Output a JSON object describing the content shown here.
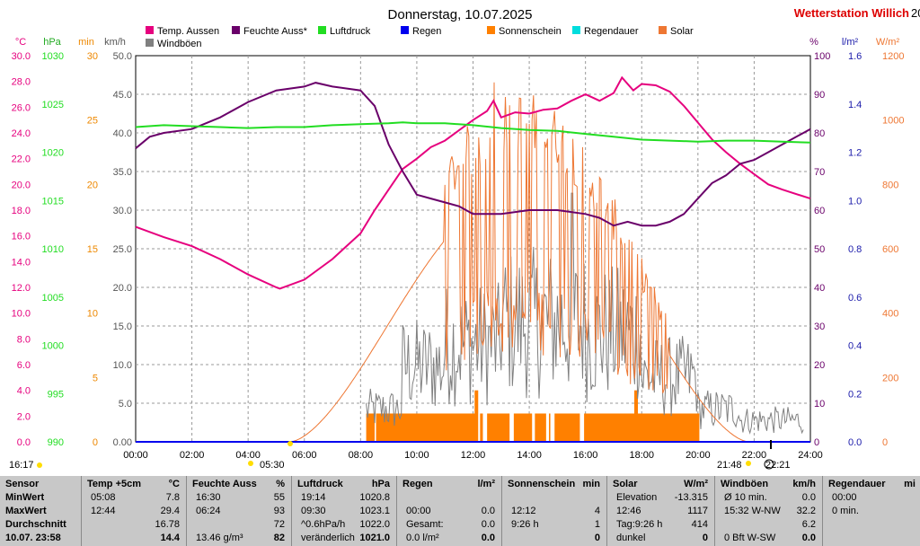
{
  "header": {
    "title": "Donnerstag, 10.07.2025",
    "brand": "Wetterstation Willich",
    "corner": "20"
  },
  "axis_units": {
    "left": [
      "°C",
      "hPa",
      "min",
      "km/h"
    ],
    "right": [
      "%",
      "l/m²",
      "W/m²"
    ]
  },
  "legend": [
    {
      "label": "Temp. Aussen",
      "color": "#e6007e"
    },
    {
      "label": "Feuchte Auss*",
      "color": "#6a006a"
    },
    {
      "label": "Luftdruck",
      "color": "#22dd22"
    },
    {
      "label": "Regen",
      "color": "#0000ee"
    },
    {
      "label": "Sonnenschein",
      "color": "#ff8000"
    },
    {
      "label": "Regendauer",
      "color": "#00dddd"
    },
    {
      "label": "Solar",
      "color": "#ee7733"
    },
    {
      "label": "Windböen",
      "color": "#808080"
    }
  ],
  "markers": {
    "sunrise": "05:30",
    "sunset": "21:48",
    "moon": "22:21",
    "left_time": "16:17"
  },
  "chart_data": {
    "type": "line",
    "title": "Donnerstag, 10.07.2025",
    "x_range": [
      0,
      24
    ],
    "x_ticks": [
      "00:00",
      "02:00",
      "04:00",
      "06:00",
      "08:00",
      "10:00",
      "12:00",
      "14:00",
      "16:00",
      "18:00",
      "20:00",
      "22:00",
      "24:00"
    ],
    "axes": {
      "temp": {
        "unit": "°C",
        "range": [
          0,
          30
        ],
        "ticks": [
          "0.0",
          "2.0",
          "4.0",
          "6.0",
          "8.0",
          "10.0",
          "12.0",
          "14.0",
          "16.0",
          "18.0",
          "20.0",
          "22.0",
          "24.0",
          "26.0",
          "28.0",
          "30.0"
        ],
        "color": "#e6007e"
      },
      "pressure": {
        "unit": "hPa",
        "range": [
          990,
          1030
        ],
        "ticks": [
          "990",
          "995",
          "1000",
          "1005",
          "1010",
          "1015",
          "1020",
          "1025",
          "1030"
        ],
        "color": "#22dd22"
      },
      "minutes": {
        "unit": "min",
        "range": [
          0,
          30
        ],
        "ticks": [
          "0",
          "5",
          "10",
          "15",
          "20",
          "25",
          "30"
        ],
        "color": "#ee8800"
      },
      "wind": {
        "unit": "km/h",
        "range": [
          0,
          50
        ],
        "ticks": [
          "0.00",
          "5.0",
          "10.0",
          "15.0",
          "20.0",
          "25.0",
          "30.0",
          "35.0",
          "40.0",
          "45.0",
          "50.0"
        ],
        "color": "#555555"
      },
      "humidity": {
        "unit": "%",
        "range": [
          0,
          100
        ],
        "ticks": [
          "0",
          "10",
          "20",
          "30",
          "40",
          "50",
          "60",
          "70",
          "80",
          "90",
          "100"
        ],
        "color": "#6a006a"
      },
      "rain": {
        "unit": "l/m²",
        "range": [
          0,
          1.6
        ],
        "ticks": [
          "0.0",
          "0.2",
          "0.4",
          "0.6",
          "0.8",
          "1.0",
          "1.2",
          "1.4",
          "1.6"
        ],
        "color": "#1a1aaa"
      },
      "solar": {
        "unit": "W/m²",
        "range": [
          0,
          1200
        ],
        "ticks": [
          "0",
          "200",
          "400",
          "600",
          "800",
          "1000",
          "1200"
        ],
        "color": "#ee7733"
      }
    },
    "series": [
      {
        "name": "Temp. Aussen",
        "axis": "temp",
        "color": "#e6007e",
        "points": [
          [
            0,
            16.7
          ],
          [
            1,
            15.9
          ],
          [
            2,
            15.2
          ],
          [
            3,
            14.2
          ],
          [
            4,
            13.0
          ],
          [
            5,
            12.0
          ],
          [
            5.13,
            11.9
          ],
          [
            6,
            12.6
          ],
          [
            7,
            14.2
          ],
          [
            8,
            16.2
          ],
          [
            8.5,
            18.0
          ],
          [
            9,
            19.6
          ],
          [
            9.5,
            21.2
          ],
          [
            10,
            22.0
          ],
          [
            10.5,
            22.9
          ],
          [
            11,
            23.4
          ],
          [
            11.5,
            24.2
          ],
          [
            12,
            25.0
          ],
          [
            12.5,
            25.7
          ],
          [
            12.73,
            26.5
          ],
          [
            13,
            25.2
          ],
          [
            13.5,
            25.6
          ],
          [
            14,
            25.5
          ],
          [
            14.5,
            25.8
          ],
          [
            15,
            25.9
          ],
          [
            15.5,
            26.5
          ],
          [
            16,
            27.0
          ],
          [
            16.5,
            26.5
          ],
          [
            17,
            27.1
          ],
          [
            17.3,
            28.3
          ],
          [
            17.7,
            27.3
          ],
          [
            18,
            27.8
          ],
          [
            18.5,
            27.7
          ],
          [
            19,
            27.2
          ],
          [
            19.5,
            26.1
          ],
          [
            20,
            24.8
          ],
          [
            20.5,
            23.5
          ],
          [
            21,
            22.5
          ],
          [
            21.5,
            21.6
          ],
          [
            22,
            20.8
          ],
          [
            22.5,
            20.0
          ],
          [
            23,
            19.6
          ],
          [
            24,
            18.9
          ]
        ]
      },
      {
        "name": "Feuchte Auss*",
        "axis": "humidity",
        "color": "#6a006a",
        "points": [
          [
            0,
            76
          ],
          [
            0.5,
            79
          ],
          [
            1,
            80
          ],
          [
            2,
            81
          ],
          [
            3,
            84
          ],
          [
            4,
            88
          ],
          [
            5,
            91
          ],
          [
            6,
            92
          ],
          [
            6.4,
            93
          ],
          [
            7,
            92
          ],
          [
            8,
            91
          ],
          [
            8.5,
            87
          ],
          [
            9,
            77
          ],
          [
            9.5,
            70
          ],
          [
            10,
            64
          ],
          [
            10.5,
            63
          ],
          [
            11,
            62
          ],
          [
            11.5,
            61
          ],
          [
            12,
            59
          ],
          [
            13,
            59
          ],
          [
            14,
            60
          ],
          [
            15,
            60
          ],
          [
            16,
            59
          ],
          [
            16.5,
            58
          ],
          [
            17,
            56
          ],
          [
            17.5,
            57
          ],
          [
            18,
            56
          ],
          [
            18.5,
            56
          ],
          [
            19,
            57
          ],
          [
            19.5,
            59
          ],
          [
            20,
            63
          ],
          [
            20.5,
            67
          ],
          [
            21,
            69
          ],
          [
            21.5,
            72
          ],
          [
            22,
            73
          ],
          [
            22.5,
            75
          ],
          [
            23,
            77
          ],
          [
            24,
            81
          ]
        ]
      },
      {
        "name": "Luftdruck",
        "axis": "pressure",
        "color": "#22dd22",
        "points": [
          [
            0,
            1022.6
          ],
          [
            1,
            1022.8
          ],
          [
            2,
            1022.7
          ],
          [
            3,
            1022.6
          ],
          [
            4,
            1022.5
          ],
          [
            5,
            1022.6
          ],
          [
            6,
            1022.6
          ],
          [
            7,
            1022.8
          ],
          [
            8,
            1022.9
          ],
          [
            9,
            1023.0
          ],
          [
            9.5,
            1023.1
          ],
          [
            10,
            1023.0
          ],
          [
            11,
            1023.0
          ],
          [
            12,
            1022.8
          ],
          [
            13,
            1022.5
          ],
          [
            14,
            1022.3
          ],
          [
            15,
            1022.2
          ],
          [
            16,
            1021.9
          ],
          [
            17,
            1021.6
          ],
          [
            18,
            1021.3
          ],
          [
            19,
            1021.2
          ],
          [
            20,
            1021.1
          ],
          [
            21,
            1021.2
          ],
          [
            22,
            1021.2
          ],
          [
            23,
            1021.1
          ],
          [
            24,
            1021.0
          ]
        ]
      },
      {
        "name": "Regen",
        "axis": "rain",
        "color": "#0000ee",
        "points": [
          [
            0,
            0
          ],
          [
            24,
            0
          ]
        ]
      }
    ],
    "solar": {
      "axis": "solar",
      "color": "#ee7733",
      "sunrise": 5.5,
      "sunset": 21.8,
      "peak": 1117,
      "peak_time": 12.77
    },
    "sunshine": {
      "axis": "minutes",
      "color": "#ff8000",
      "level": 1,
      "level_top": 4,
      "intervals": [
        [
          8.2,
          8.5
        ],
        [
          8.55,
          12.1
        ],
        [
          12.25,
          12.35
        ],
        [
          12.5,
          13.3
        ],
        [
          13.45,
          14.1
        ],
        [
          14.2,
          14.6
        ],
        [
          14.7,
          14.75
        ],
        [
          14.9,
          15.8
        ],
        [
          15.95,
          20.05
        ]
      ],
      "spikes": [
        12.12,
        17.8
      ]
    },
    "windgust": {
      "axis": "wind",
      "color": "#808080",
      "max": 32.2,
      "max_time": 15.53
    }
  },
  "table": {
    "sensor": {
      "title": "Sensor",
      "rows": [
        "MinWert",
        "MaxWert",
        "Durchschnitt",
        "10.07. 23:58"
      ]
    },
    "temp": {
      "title": "Temp +5cm",
      "unit": "°C",
      "rows": [
        [
          "05:08",
          "7.8"
        ],
        [
          "12:44",
          "29.4"
        ],
        [
          "",
          "16.78"
        ],
        [
          "",
          "14.4"
        ]
      ]
    },
    "feuchte": {
      "title": "Feuchte Auss",
      "unit": "%",
      "rows": [
        [
          "16:30",
          "55"
        ],
        [
          "06:24",
          "93"
        ],
        [
          "",
          "72"
        ],
        [
          "13.46 g/m³",
          "82"
        ]
      ]
    },
    "luftdruck": {
      "title": "Luftdruck",
      "unit": "hPa",
      "rows": [
        [
          "19:14",
          "1020.8"
        ],
        [
          "09:30",
          "1023.1"
        ],
        [
          "^0.6hPa/h",
          "1022.0"
        ],
        [
          "veränderlich",
          "1021.0"
        ]
      ]
    },
    "regen": {
      "title": "Regen",
      "unit": "l/m²",
      "rows": [
        [
          "",
          ""
        ],
        [
          "00:00",
          "0.0"
        ],
        [
          "Gesamt:",
          "0.0"
        ],
        [
          "0.0 l/m²",
          "0.0"
        ]
      ]
    },
    "sonne": {
      "title": "Sonnenschein",
      "unit": "min",
      "rows": [
        [
          "",
          ""
        ],
        [
          "12:12",
          "4"
        ],
        [
          "9:26 h",
          "1"
        ],
        [
          "",
          "0"
        ]
      ]
    },
    "solar": {
      "title": "Solar",
      "unit": "W/m²",
      "rows": [
        [
          "Elevation",
          "-13.315"
        ],
        [
          "12:46",
          "1117"
        ],
        [
          "Tag:9:26 h",
          "414"
        ],
        [
          "dunkel",
          "0"
        ]
      ]
    },
    "wind": {
      "title": "Windböen",
      "unit": "km/h",
      "rows": [
        [
          "Ø 10 min.",
          "0.0"
        ],
        [
          "15:32  W-NW",
          "32.2"
        ],
        [
          "",
          "6.2"
        ],
        [
          "0 Bft W-SW",
          "0.0"
        ]
      ]
    },
    "regendauer": {
      "title": "Regendauer",
      "unit": "mi",
      "rows": [
        [
          "00:00",
          ""
        ],
        [
          "0 min.",
          ""
        ],
        [
          "",
          ""
        ],
        [
          "",
          ""
        ]
      ]
    }
  }
}
